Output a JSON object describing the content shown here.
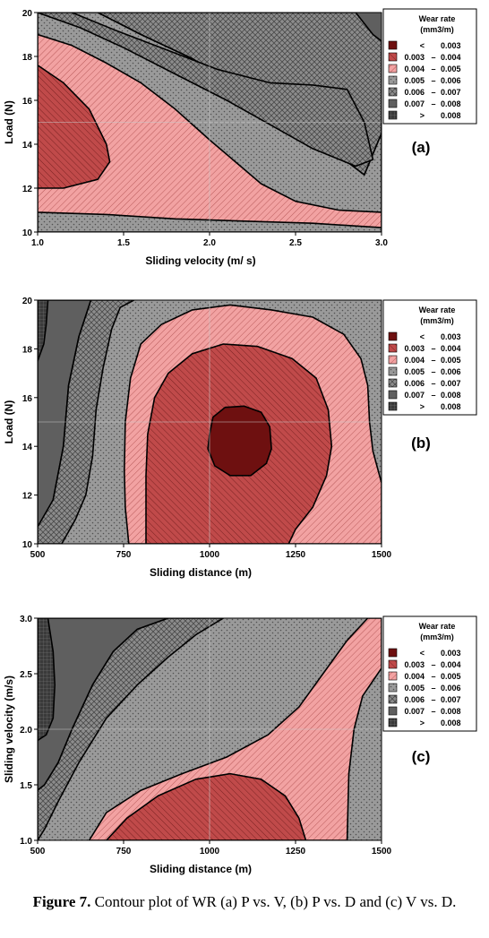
{
  "legend": {
    "title_line1": "Wear rate",
    "title_line2": "(mm3/m)",
    "ranges": [
      {
        "low": "<",
        "high": "0.003",
        "fill": "c1"
      },
      {
        "low": "0.003",
        "high": "0.004",
        "fill": "c2"
      },
      {
        "low": "0.004",
        "high": "0.005",
        "fill": "c3"
      },
      {
        "low": "0.005",
        "high": "0.006",
        "fill": "c4"
      },
      {
        "low": "0.006",
        "high": "0.007",
        "fill": "c5"
      },
      {
        "low": "0.007",
        "high": "0.008",
        "fill": "c6"
      },
      {
        "low": ">",
        "high": "0.008",
        "fill": "c7"
      }
    ],
    "dash": "–"
  },
  "colors": {
    "c1": "#6e1010",
    "c2": "#c04a4a",
    "c3": "#f2a2a2",
    "c4": "#9a9a9a",
    "c5": "#8c8c8c",
    "c6": "#5f5f5f",
    "c7": "#3a3a3a"
  },
  "chart_data": [
    {
      "type": "contour",
      "panel_label": "(a)",
      "xlabel": "Sliding velocity (m/ s)",
      "ylabel": "Load (N)",
      "xlim": [
        1.0,
        3.0
      ],
      "ylim": [
        10,
        20
      ],
      "xticks": [
        "1.0",
        "1.5",
        "2.0",
        "2.5",
        "3.0"
      ],
      "yticks": [
        "10",
        "12",
        "14",
        "16",
        "18",
        "20"
      ],
      "levels": [
        0.003,
        0.004,
        0.005,
        0.006,
        0.007,
        0.008
      ],
      "regions": [
        {
          "range": "0.007 – 0.008",
          "fill": "c6",
          "points": [
            [
              1.0,
              20
            ],
            [
              3.0,
              20
            ],
            [
              3.0,
              10
            ],
            [
              1.0,
              10
            ]
          ]
        },
        {
          "range": "0.006 – 0.007",
          "fill": "c5",
          "points": [
            [
              1.0,
              20
            ],
            [
              2.85,
              20
            ],
            [
              2.95,
              19.0
            ],
            [
              3.0,
              18.7
            ],
            [
              3.0,
              14.5
            ],
            [
              2.9,
              12.6
            ],
            [
              2.75,
              13.5
            ],
            [
              2.6,
              14.3
            ],
            [
              2.4,
              15.2
            ],
            [
              2.2,
              16.5
            ],
            [
              1.9,
              17.9
            ],
            [
              1.6,
              19.0
            ],
            [
              1.35,
              20
            ]
          ]
        },
        {
          "range": "0.005 – 0.006",
          "fill": "c4",
          "points": [
            [
              1.0,
              20
            ],
            [
              1.35,
              20
            ],
            [
              1.6,
              19.0
            ],
            [
              1.9,
              17.9
            ],
            [
              2.2,
              16.5
            ],
            [
              2.4,
              15.2
            ],
            [
              2.6,
              14.3
            ],
            [
              2.75,
              13.5
            ],
            [
              2.9,
              12.6
            ],
            [
              3.0,
              14.5
            ],
            [
              3.0,
              10
            ],
            [
              1.0,
              10
            ]
          ]
        },
        {
          "range": "0.006 – 0.007",
          "fill": "c5",
          "points": [
            [
              1.0,
              20
            ],
            [
              1.2,
              20
            ],
            [
              1.45,
              19.2
            ],
            [
              1.75,
              18.3
            ],
            [
              2.05,
              17.4
            ],
            [
              2.35,
              16.8
            ],
            [
              2.6,
              16.7
            ],
            [
              2.8,
              16.5
            ],
            [
              2.9,
              15.0
            ],
            [
              2.95,
              13.3
            ],
            [
              2.85,
              13.0
            ],
            [
              2.6,
              13.8
            ],
            [
              2.35,
              14.9
            ],
            [
              2.1,
              16.0
            ],
            [
              1.8,
              17.2
            ],
            [
              1.5,
              18.4
            ],
            [
              1.25,
              19.3
            ],
            [
              1.0,
              20
            ]
          ]
        },
        {
          "range": "0.004 – 0.005",
          "fill": "c3",
          "points": [
            [
              1.0,
              19.0
            ],
            [
              1.2,
              18.5
            ],
            [
              1.4,
              17.7
            ],
            [
              1.6,
              16.8
            ],
            [
              1.8,
              15.6
            ],
            [
              2.0,
              14.2
            ],
            [
              2.15,
              13.2
            ],
            [
              2.3,
              12.2
            ],
            [
              2.5,
              11.4
            ],
            [
              2.75,
              11.0
            ],
            [
              3.0,
              10.9
            ],
            [
              3.0,
              10.2
            ],
            [
              2.6,
              10.4
            ],
            [
              2.2,
              10.5
            ],
            [
              1.8,
              10.6
            ],
            [
              1.4,
              10.8
            ],
            [
              1.0,
              10.9
            ]
          ]
        },
        {
          "range": "0.003 – 0.004",
          "fill": "c2",
          "points": [
            [
              1.0,
              17.6
            ],
            [
              1.15,
              16.8
            ],
            [
              1.3,
              15.6
            ],
            [
              1.4,
              14.0
            ],
            [
              1.42,
              13.2
            ],
            [
              1.35,
              12.4
            ],
            [
              1.15,
              12.0
            ],
            [
              1.0,
              12.0
            ]
          ]
        }
      ]
    },
    {
      "type": "contour",
      "panel_label": "(b)",
      "xlabel": "Sliding distance (m)",
      "ylabel": "Load (N)",
      "xlim": [
        500,
        1500
      ],
      "ylim": [
        10,
        20
      ],
      "xticks": [
        "500",
        "750",
        "1000",
        "1250",
        "1500"
      ],
      "yticks": [
        "10",
        "12",
        "14",
        "16",
        "18",
        "20"
      ],
      "levels": [
        0.003,
        0.004,
        0.005,
        0.006,
        0.007,
        0.008
      ],
      "regions": [
        {
          "range": "0.005 – 0.006",
          "fill": "c4",
          "points": [
            [
              500,
              20
            ],
            [
              1500,
              20
            ],
            [
              1500,
              10
            ],
            [
              500,
              10
            ]
          ]
        },
        {
          "range": "0.007 – 0.008",
          "fill": "c6",
          "points": [
            [
              500,
              20
            ],
            [
              655,
              20
            ],
            [
              620,
              18.5
            ],
            [
              590,
              16.5
            ],
            [
              575,
              14.0
            ],
            [
              545,
              11.8
            ],
            [
              510,
              10.9
            ],
            [
              500,
              10.7
            ]
          ]
        },
        {
          "range": "0.008",
          "fill": "c7",
          "points": [
            [
              500,
              20
            ],
            [
              530,
              20
            ],
            [
              525,
              19.0
            ],
            [
              518,
              18.2
            ],
            [
              500,
              17.5
            ]
          ]
        },
        {
          "range": "0.006 – 0.007",
          "fill": "c5",
          "points": [
            [
              655,
              20
            ],
            [
              780,
              20
            ],
            [
              740,
              19.7
            ],
            [
              715,
              18.8
            ],
            [
              690,
              17.2
            ],
            [
              670,
              15.5
            ],
            [
              660,
              13.6
            ],
            [
              640,
              12.0
            ],
            [
              610,
              11.0
            ],
            [
              570,
              10.0
            ],
            [
              500,
              10.0
            ],
            [
              500,
              10.7
            ],
            [
              545,
              11.8
            ],
            [
              575,
              14.0
            ],
            [
              590,
              16.5
            ],
            [
              620,
              18.5
            ]
          ]
        },
        {
          "range": "0.004 – 0.005",
          "fill": "c3",
          "points": [
            [
              765,
              10
            ],
            [
              755,
              11.5
            ],
            [
              752,
              13.0
            ],
            [
              755,
              15.0
            ],
            [
              770,
              16.8
            ],
            [
              800,
              18.2
            ],
            [
              860,
              19.0
            ],
            [
              950,
              19.6
            ],
            [
              1060,
              19.8
            ],
            [
              1180,
              19.6
            ],
            [
              1300,
              19.3
            ],
            [
              1390,
              18.6
            ],
            [
              1440,
              17.6
            ],
            [
              1460,
              16.5
            ],
            [
              1465,
              15.0
            ],
            [
              1475,
              13.8
            ],
            [
              1500,
              12.5
            ],
            [
              1500,
              10
            ],
            [
              1430,
              10
            ]
          ]
        },
        {
          "range": "0.003 – 0.004",
          "fill": "c2",
          "points": [
            [
              815,
              10
            ],
            [
              815,
              11.0
            ],
            [
              815,
              12.8
            ],
            [
              820,
              14.5
            ],
            [
              840,
              16.0
            ],
            [
              880,
              17.0
            ],
            [
              950,
              17.8
            ],
            [
              1040,
              18.2
            ],
            [
              1140,
              18.1
            ],
            [
              1240,
              17.6
            ],
            [
              1310,
              16.8
            ],
            [
              1345,
              15.5
            ],
            [
              1355,
              14.0
            ],
            [
              1340,
              12.8
            ],
            [
              1300,
              11.5
            ],
            [
              1250,
              10.6
            ],
            [
              1230,
              10
            ]
          ]
        },
        {
          "range": "< 0.003",
          "fill": "c1",
          "points": [
            [
              1000,
              14.5
            ],
            [
              1010,
              15.2
            ],
            [
              1045,
              15.6
            ],
            [
              1100,
              15.65
            ],
            [
              1150,
              15.4
            ],
            [
              1175,
              14.8
            ],
            [
              1180,
              13.9
            ],
            [
              1165,
              13.3
            ],
            [
              1120,
              12.8
            ],
            [
              1060,
              12.8
            ],
            [
              1015,
              13.2
            ],
            [
              995,
              13.9
            ]
          ]
        }
      ]
    },
    {
      "type": "contour",
      "panel_label": "(c)",
      "xlabel": "Sliding distance (m)",
      "ylabel": "Sliding velocity (m/s)",
      "xlim": [
        500,
        1500
      ],
      "ylim": [
        1.0,
        3.0
      ],
      "xticks": [
        "500",
        "750",
        "1000",
        "1250",
        "1500"
      ],
      "yticks": [
        "1.0",
        "1.5",
        "2.0",
        "2.5",
        "3.0"
      ],
      "levels": [
        0.003,
        0.004,
        0.005,
        0.006,
        0.007,
        0.008
      ],
      "regions": [
        {
          "range": "0.005 – 0.006",
          "fill": "c4",
          "points": [
            [
              500,
              3.0
            ],
            [
              1500,
              3.0
            ],
            [
              1500,
              1.0
            ],
            [
              500,
              1.0
            ]
          ]
        },
        {
          "range": "0.007 – 0.008",
          "fill": "c6",
          "points": [
            [
              500,
              3.0
            ],
            [
              880,
              3.0
            ],
            [
              790,
              2.9
            ],
            [
              720,
              2.7
            ],
            [
              660,
              2.4
            ],
            [
              600,
              2.0
            ],
            [
              560,
              1.7
            ],
            [
              520,
              1.5
            ],
            [
              500,
              1.45
            ]
          ]
        },
        {
          "range": "0.008",
          "fill": "c7",
          "points": [
            [
              500,
              3.0
            ],
            [
              530,
              3.0
            ],
            [
              545,
              2.7
            ],
            [
              550,
              2.4
            ],
            [
              545,
              2.1
            ],
            [
              525,
              1.95
            ],
            [
              500,
              1.9
            ]
          ]
        },
        {
          "range": "0.006 – 0.007",
          "fill": "c5",
          "points": [
            [
              880,
              3.0
            ],
            [
              1040,
              3.0
            ],
            [
              960,
              2.85
            ],
            [
              880,
              2.65
            ],
            [
              790,
              2.4
            ],
            [
              700,
              2.1
            ],
            [
              620,
              1.7
            ],
            [
              560,
              1.35
            ],
            [
              520,
              1.1
            ],
            [
              500,
              1.0
            ],
            [
              500,
              1.45
            ],
            [
              520,
              1.5
            ],
            [
              560,
              1.7
            ],
            [
              600,
              2.0
            ],
            [
              660,
              2.4
            ],
            [
              720,
              2.7
            ],
            [
              790,
              2.9
            ]
          ]
        },
        {
          "range": "0.004 – 0.005",
          "fill": "c3",
          "points": [
            [
              1500,
              2.55
            ],
            [
              1445,
              2.3
            ],
            [
              1420,
              2.0
            ],
            [
              1405,
              1.6
            ],
            [
              1400,
              1.0
            ],
            [
              650,
              1.0
            ],
            [
              700,
              1.25
            ],
            [
              800,
              1.45
            ],
            [
              920,
              1.6
            ],
            [
              1050,
              1.75
            ],
            [
              1170,
              1.95
            ],
            [
              1260,
              2.2
            ],
            [
              1330,
              2.5
            ],
            [
              1400,
              2.8
            ],
            [
              1460,
              3.0
            ],
            [
              1500,
              3.0
            ]
          ]
        },
        {
          "range": "0.003 – 0.004",
          "fill": "c2",
          "points": [
            [
              700,
              1.0
            ],
            [
              760,
              1.2
            ],
            [
              850,
              1.4
            ],
            [
              960,
              1.55
            ],
            [
              1060,
              1.6
            ],
            [
              1150,
              1.55
            ],
            [
              1220,
              1.4
            ],
            [
              1260,
              1.2
            ],
            [
              1280,
              1.0
            ]
          ]
        }
      ]
    }
  ],
  "caption": {
    "label": "Figure 7.",
    "text": " Contour plot of WR (a) P vs. V, (b) P vs. D and (c) V vs. D."
  }
}
